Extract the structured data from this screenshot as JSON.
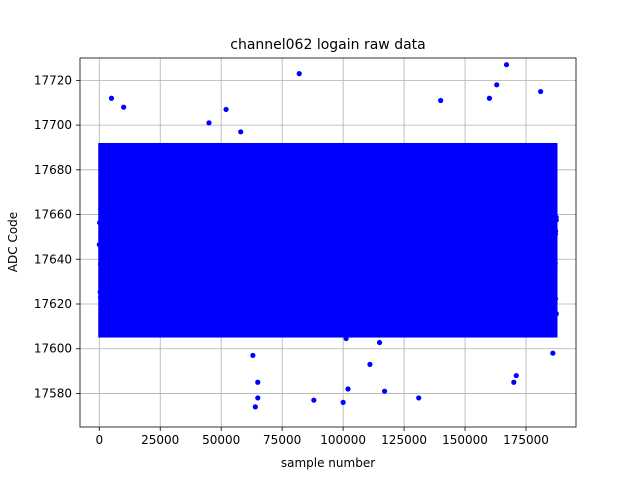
{
  "chart_data": {
    "type": "scatter",
    "title": "channel062 logain raw data",
    "xlabel": "sample number",
    "ylabel": "ADC Code",
    "xlim": [
      -7900,
      195500
    ],
    "ylim": [
      17565,
      17730
    ],
    "x_ticks": [
      0,
      25000,
      50000,
      75000,
      100000,
      125000,
      150000,
      175000
    ],
    "y_ticks": [
      17580,
      17600,
      17620,
      17640,
      17660,
      17680,
      17700,
      17720
    ],
    "x_tick_labels": [
      "0",
      "25000",
      "50000",
      "75000",
      "100000",
      "125000",
      "150000",
      "175000"
    ],
    "y_tick_labels": [
      "17580",
      "17600",
      "17620",
      "17640",
      "17660",
      "17680",
      "17700",
      "17720"
    ],
    "grid": true,
    "marker_color": "#0000ff",
    "series": [
      {
        "x_range": [
          0,
          187500
        ],
        "mean": 17647,
        "band_low": 17605,
        "band_high": 17692,
        "outliers": [
          [
            5000,
            17712
          ],
          [
            10000,
            17708
          ],
          [
            45000,
            17701
          ],
          [
            52000,
            17707
          ],
          [
            56000,
            17690
          ],
          [
            58000,
            17697
          ],
          [
            63000,
            17597
          ],
          [
            65000,
            17585
          ],
          [
            65000,
            17578
          ],
          [
            64000,
            17574
          ],
          [
            82000,
            17723
          ],
          [
            88000,
            17577
          ],
          [
            100000,
            17576
          ],
          [
            102000,
            17582
          ],
          [
            111000,
            17593
          ],
          [
            117000,
            17581
          ],
          [
            131000,
            17578
          ],
          [
            140000,
            17711
          ],
          [
            160000,
            17712
          ],
          [
            163000,
            17718
          ],
          [
            167000,
            17727
          ],
          [
            170000,
            17585
          ],
          [
            171000,
            17588
          ],
          [
            181000,
            17715
          ],
          [
            186000,
            17598
          ]
        ]
      }
    ]
  }
}
